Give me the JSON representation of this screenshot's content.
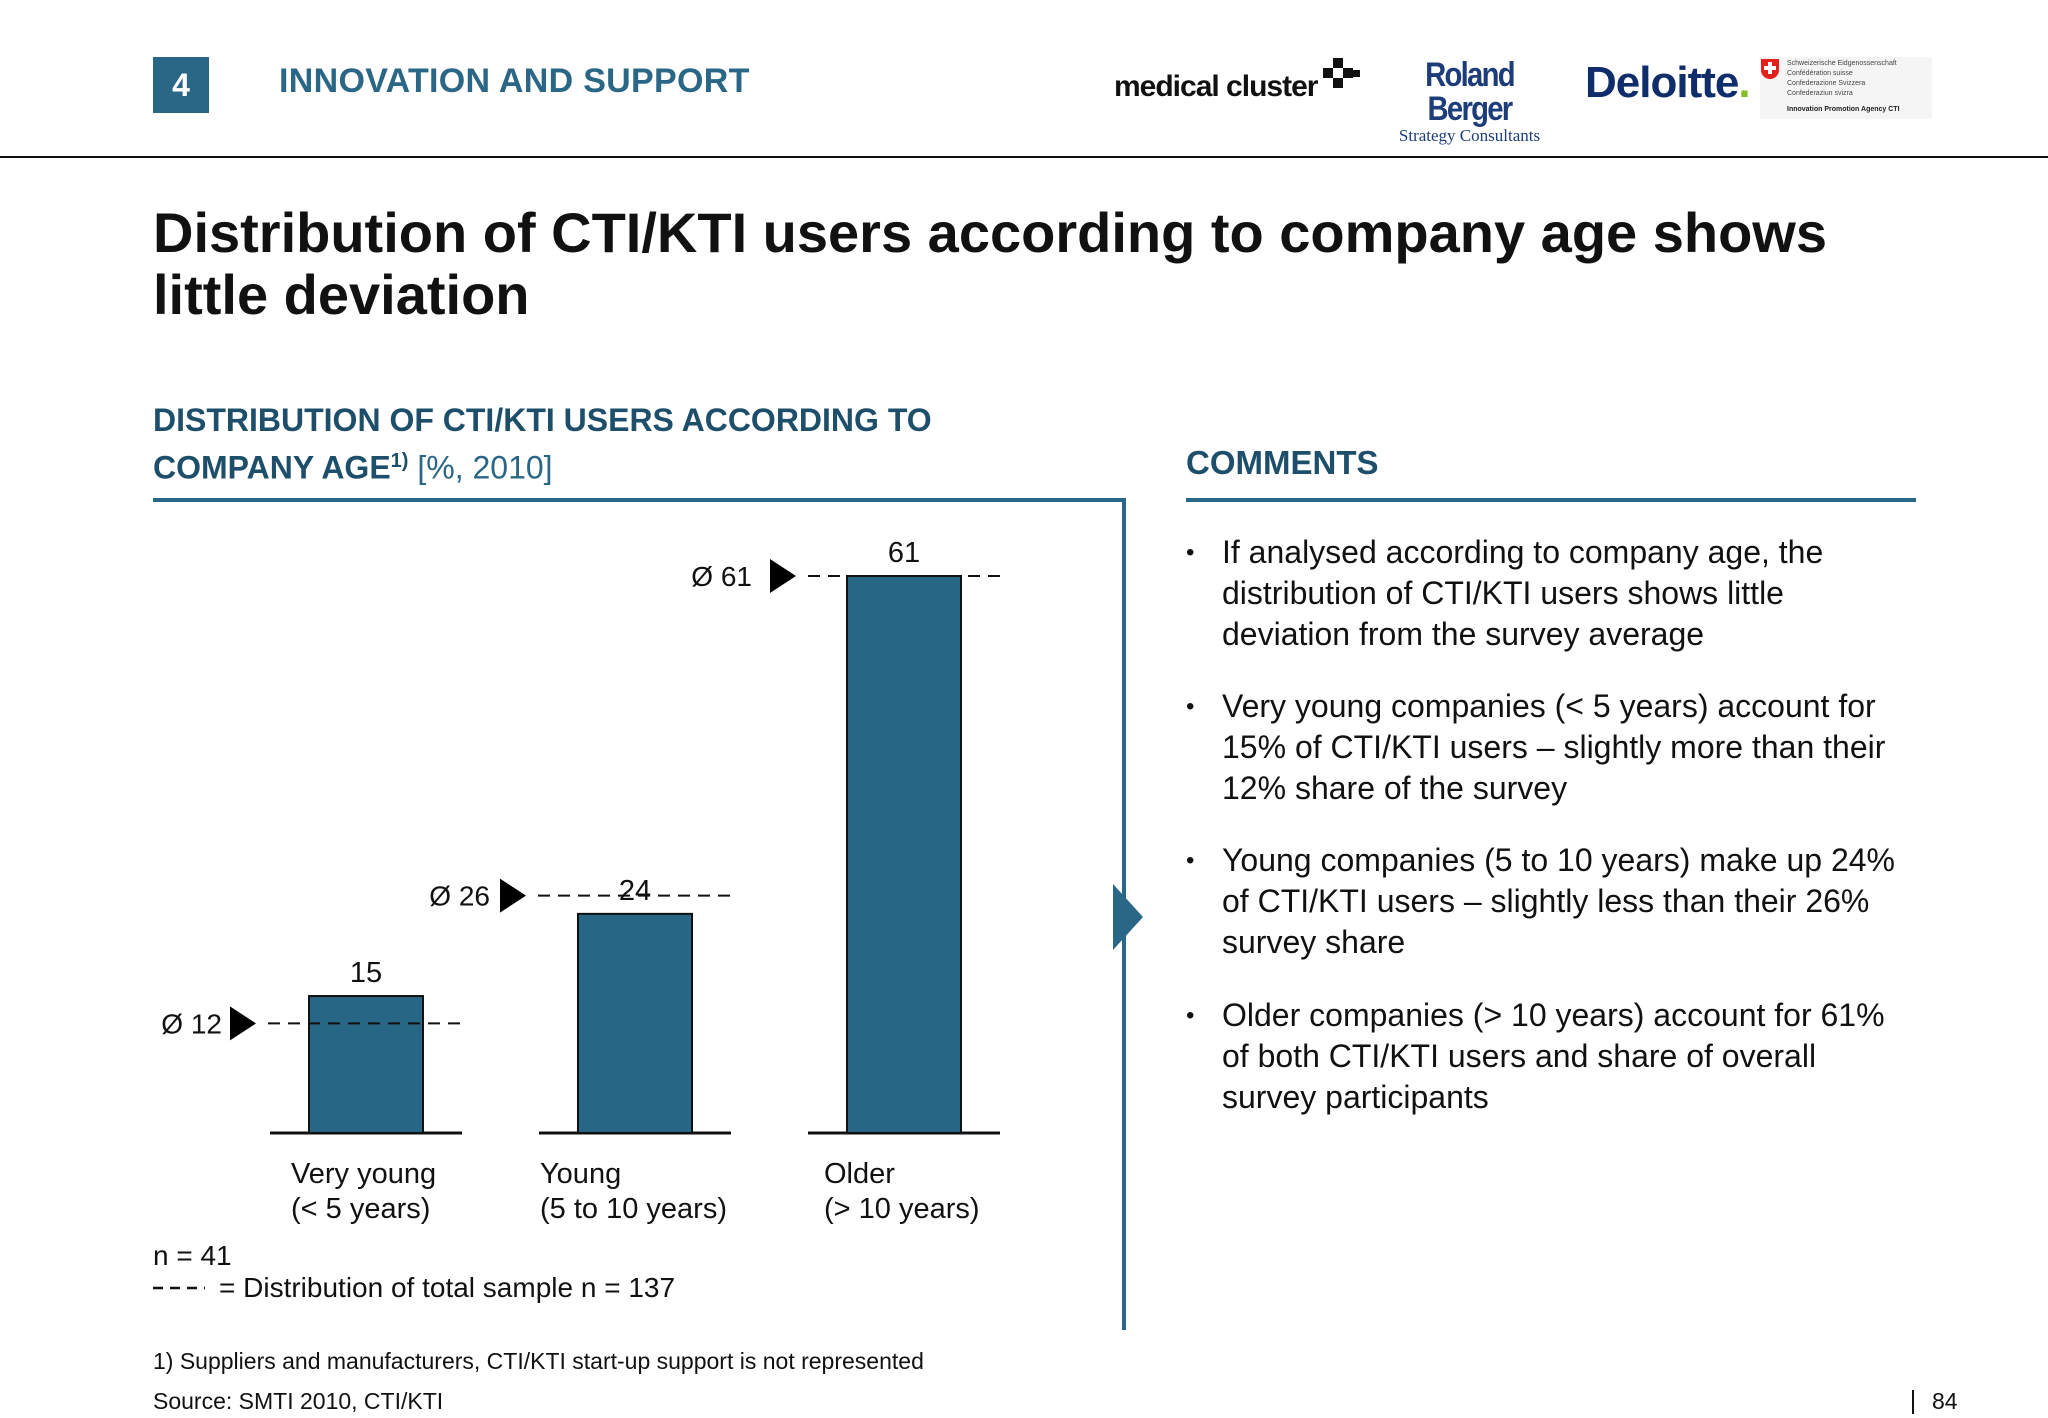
{
  "header": {
    "section_number": "4",
    "section_title": "INNOVATION AND SUPPORT",
    "logos": {
      "medical_cluster": "medical cluster",
      "roland_berger": "Roland Berger",
      "roland_berger_sub": "Strategy Consultants",
      "deloitte": "Deloitte",
      "cti_lines": [
        "Schweizerische Eidgenossenschaft",
        "Confédération suisse",
        "Confederazione Svizzera",
        "Confederaziun svizra"
      ],
      "cti_agency": "Innovation Promotion Agency CTI"
    }
  },
  "title": "Distribution of CTI/KTI users according to company age shows little deviation",
  "chart_panel": {
    "heading": "DISTRIBUTION OF CTI/KTI USERS ACCORDING TO COMPANY AGE",
    "heading_sup": "1)",
    "heading_unit": "[%, 2010]",
    "note_n": "n = 41",
    "legend_text": "= Distribution of total sample n = 137",
    "footnote": "1) Suppliers and manufacturers, CTI/KTI start-up support is not represented",
    "source": "Source:  SMTI 2010, CTI/KTI"
  },
  "chart_data": {
    "type": "bar",
    "categories": [
      [
        "Very young",
        "(< 5 years)"
      ],
      [
        "Young",
        "(5 to 10 years)"
      ],
      [
        "Older",
        "(> 10 years)"
      ]
    ],
    "values": [
      15,
      24,
      61
    ],
    "value_labels": [
      "15",
      "24",
      "61"
    ],
    "averages": [
      12,
      26,
      61
    ],
    "average_labels": [
      "Ø 12",
      "Ø 26",
      "Ø 61"
    ],
    "ylim": [
      0,
      61
    ],
    "bar_color": "#276684",
    "grid": false
  },
  "comments": {
    "heading": "COMMENTS",
    "bullets": [
      "If analysed according to company age, the distribution of CTI/KTI users shows little deviation from the survey average",
      "Very young companies (< 5 years) account for 15% of CTI/KTI users – slightly more than their 12% share of the survey",
      "Young companies (5 to 10 years) make up 24% of CTI/KTI users – slightly less than their 26% survey share",
      "Older companies (> 10 years) account for 61% of both CTI/KTI users and share of overall survey participants"
    ]
  },
  "page_number": "84",
  "colors": {
    "accent": "#2a6686",
    "heading": "#1d4f6b"
  }
}
